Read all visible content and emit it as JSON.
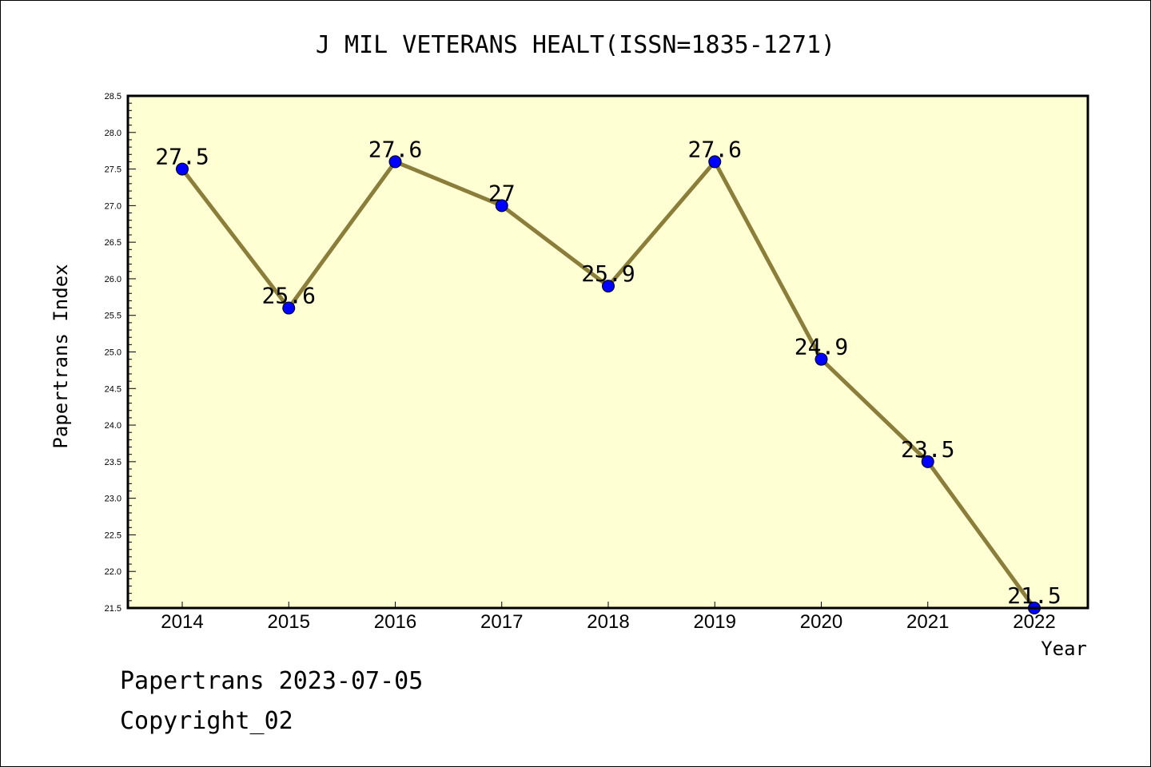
{
  "chart_data": {
    "type": "line",
    "title": "J MIL VETERANS HEALT(ISSN=1835-1271)",
    "xlabel": "Year",
    "ylabel": "Papertrans Index",
    "categories": [
      "2014",
      "2015",
      "2016",
      "2017",
      "2018",
      "2019",
      "2020",
      "2021",
      "2022"
    ],
    "values": [
      27.5,
      25.6,
      27.6,
      27.0,
      25.9,
      27.6,
      24.9,
      23.5,
      21.5
    ],
    "data_labels": [
      "27.5",
      "25.6",
      "27.6",
      "27",
      "25.9",
      "27.6",
      "24.9",
      "23.5",
      "21.5"
    ],
    "ylim": [
      21.5,
      28.5
    ],
    "yticks": [
      "21.5",
      "22.0",
      "22.5",
      "23.0",
      "23.5",
      "24.0",
      "24.5",
      "25.0",
      "25.5",
      "26.0",
      "26.5",
      "27.0",
      "27.5",
      "28.0",
      "28.5"
    ],
    "grid": false,
    "legend": "none",
    "colors": {
      "plot_background": "#ffffd4",
      "line": "#8b7d3a",
      "marker": "#0000ff"
    }
  },
  "footer": {
    "line1": "Papertrans 2023-07-05",
    "line2": "Copyright_02"
  }
}
